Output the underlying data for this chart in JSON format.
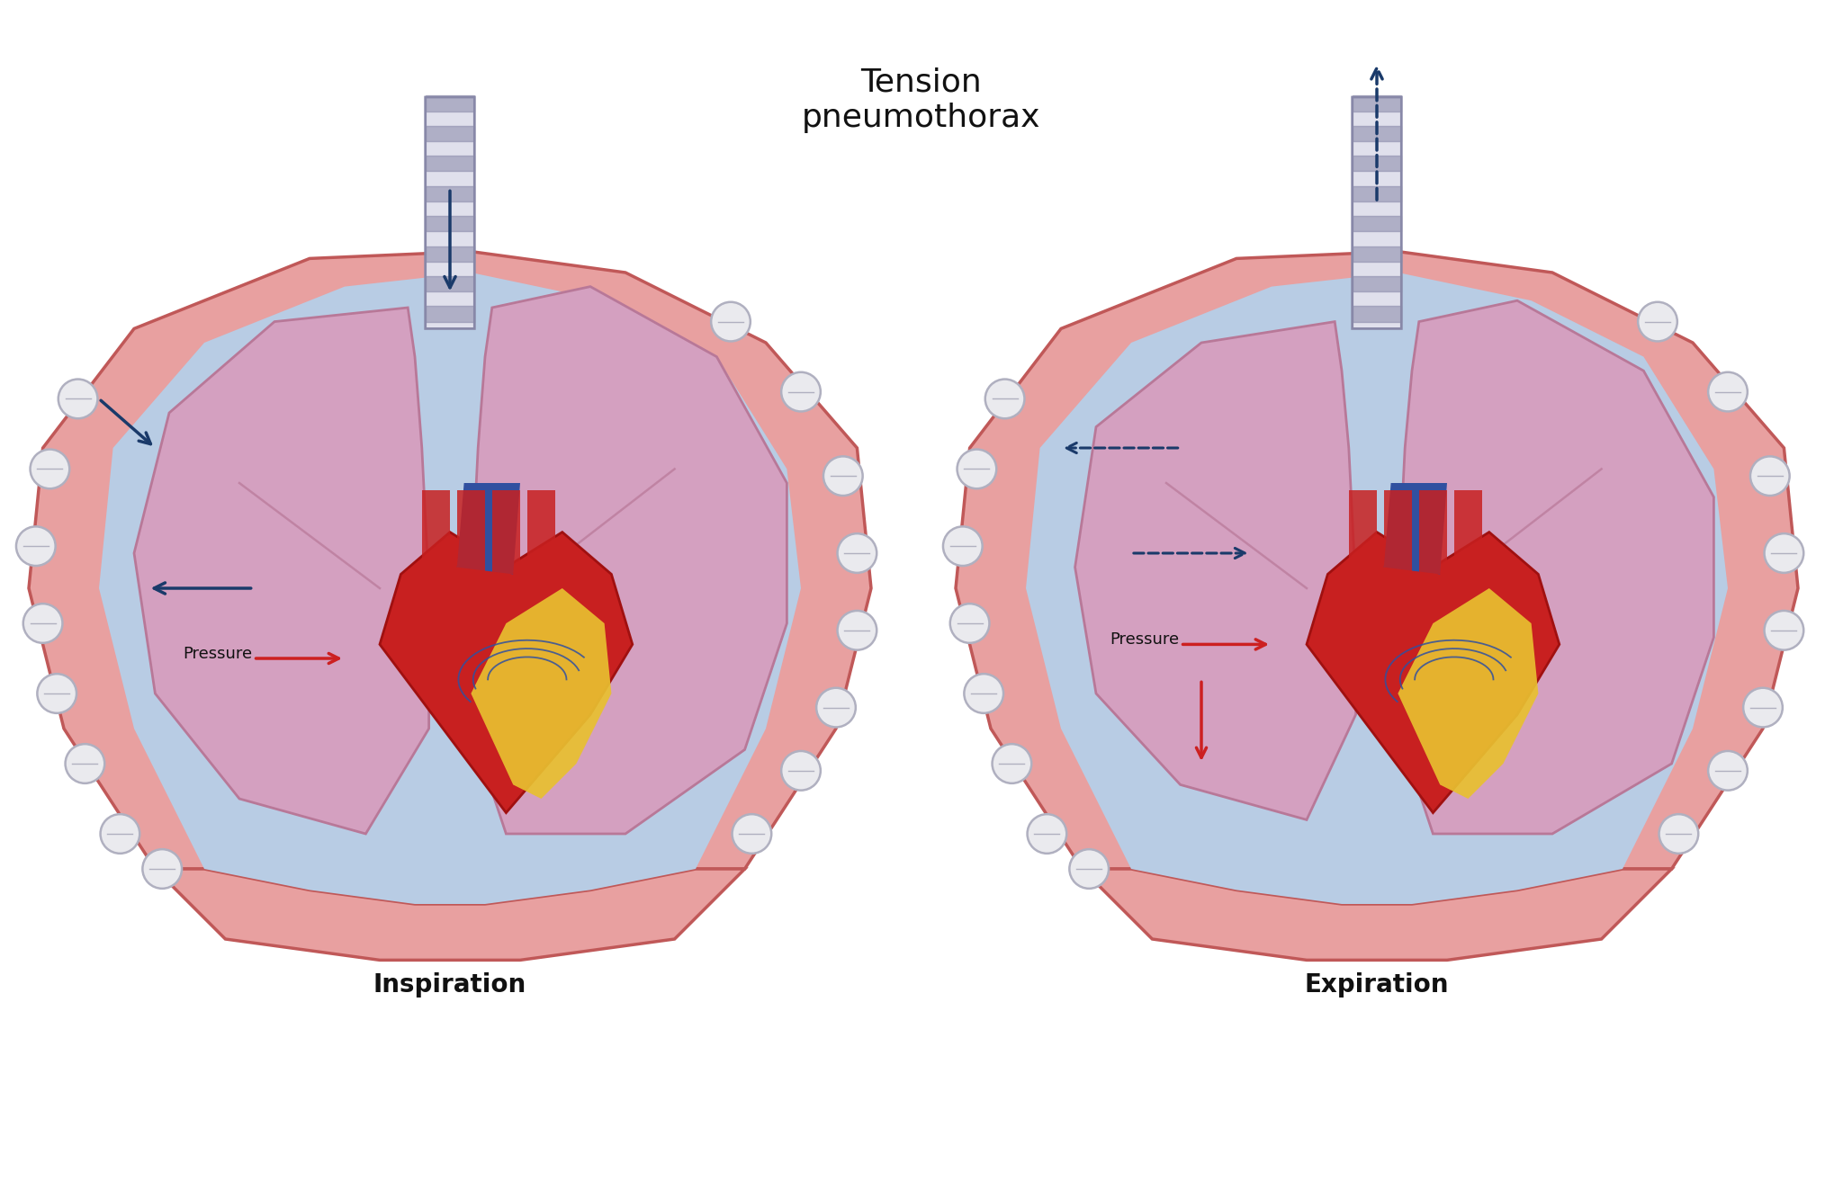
{
  "title": "Tension\npneumothorax",
  "title_fontsize": 26,
  "label_inspiration": "Inspiration",
  "label_expiration": "Expiration",
  "label_fontsize": 20,
  "pressure_label": "Pressure",
  "pressure_fontsize": 12,
  "bg_color": "#ffffff",
  "pleural_color": "#b8cce4",
  "pleural_edge": "#aabcd4",
  "chest_wall_color": "#e8a0a0",
  "chest_wall_inner": "#d07070",
  "chest_wall_outer": "#c05858",
  "lung_color": "#d4a0c0",
  "lung_edge": "#b87898",
  "heart_red": "#c82020",
  "heart_dark": "#a01010",
  "heart_yellow": "#e8c030",
  "heart_blue": "#3050a0",
  "trachea_light": "#e0e0ec",
  "trachea_dark": "#8888a8",
  "rib_fill": "#eaeaee",
  "rib_edge": "#b0b0c0",
  "arrow_blue": "#1a3a6a",
  "arrow_red": "#cc2020",
  "text_dark": "#111111"
}
